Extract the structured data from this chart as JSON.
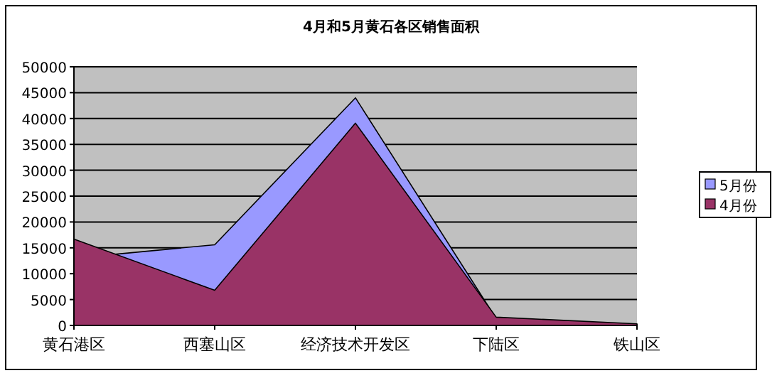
{
  "chart_data": {
    "type": "area",
    "title": "4月和5月黄石各区销售面积",
    "categories": [
      "黄石港区",
      "西塞山区",
      "经济技术开发区",
      "下陆区",
      "铁山区"
    ],
    "series": [
      {
        "name": "5月份",
        "color": "#9999ff",
        "values": [
          13000,
          15600,
          44000,
          1300,
          200
        ]
      },
      {
        "name": "4月份",
        "color": "#993366",
        "values": [
          16700,
          6800,
          39100,
          1600,
          300
        ]
      }
    ],
    "ylim": [
      0,
      50000
    ],
    "yticks": [
      0,
      5000,
      10000,
      15000,
      20000,
      25000,
      30000,
      35000,
      40000,
      45000,
      50000
    ],
    "grid": "y",
    "legend": "right"
  }
}
